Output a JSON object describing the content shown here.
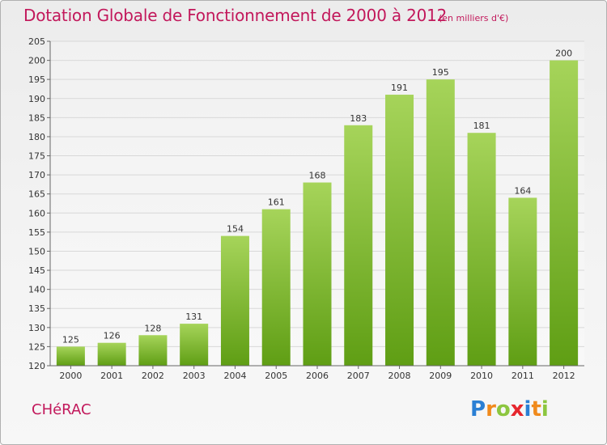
{
  "header": {
    "title": "Dotation Globale de Fonctionnement de 2000 à 2012",
    "unit_note": "(en milliers d'€)"
  },
  "footer": {
    "commune": "CHéRAC",
    "brand": "Proxiti",
    "brand_letters": [
      {
        "char": "P",
        "color": "#2a7fd4"
      },
      {
        "char": "r",
        "color": "#f08a1c"
      },
      {
        "char": "o",
        "color": "#8cc63f"
      },
      {
        "char": "x",
        "color": "#e6262d"
      },
      {
        "char": "i",
        "color": "#2a7fd4"
      },
      {
        "char": "t",
        "color": "#f08a1c"
      },
      {
        "char": "i",
        "color": "#8cc63f"
      }
    ]
  },
  "colors": {
    "accent": "#c2185b",
    "bar_light": "#a6d45a",
    "bar_dark": "#5f9e14",
    "grid": "#d8d8d8"
  },
  "chart_data": {
    "type": "bar",
    "title": "Dotation Globale de Fonctionnement de 2000 à 2012",
    "subtitle": "(en milliers d'€)",
    "categories": [
      "2000",
      "2001",
      "2002",
      "2003",
      "2004",
      "2005",
      "2006",
      "2007",
      "2008",
      "2009",
      "2010",
      "2011",
      "2012"
    ],
    "values": [
      125,
      126,
      128,
      131,
      154,
      161,
      168,
      183,
      191,
      195,
      181,
      164,
      200
    ],
    "xlabel": "",
    "ylabel": "",
    "ylim": [
      120,
      205
    ],
    "yticks": [
      120,
      125,
      130,
      135,
      140,
      145,
      150,
      155,
      160,
      165,
      170,
      175,
      180,
      185,
      190,
      195,
      200,
      205
    ],
    "grid": true,
    "data_labels": true
  }
}
